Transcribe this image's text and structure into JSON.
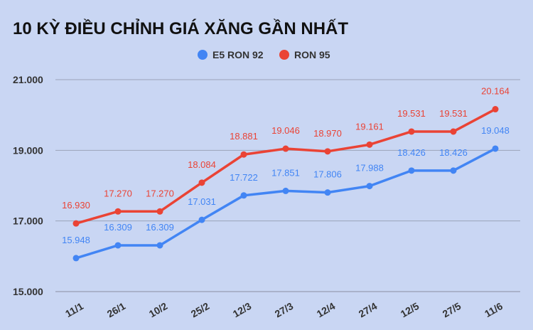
{
  "chart_data": {
    "type": "line",
    "title": "10 KỲ ĐIỀU CHỈNH GIÁ XĂNG GẦN NHẤT",
    "categories": [
      "11/1",
      "26/1",
      "10/2",
      "25/2",
      "12/3",
      "27/3",
      "12/4",
      "27/4",
      "12/5",
      "27/5",
      "11/6"
    ],
    "series": [
      {
        "name": "E5 RON 92",
        "color": "#4285f4",
        "values": [
          15948,
          16309,
          16309,
          17031,
          17722,
          17851,
          17806,
          17988,
          18426,
          18426,
          19048
        ],
        "labels": [
          "15.948",
          "16.309",
          "16.309",
          "17.031",
          "17.722",
          "17.851",
          "17.806",
          "17.988",
          "18.426",
          "18.426",
          "19.048"
        ]
      },
      {
        "name": "RON 95",
        "color": "#ea4335",
        "values": [
          16930,
          17270,
          17270,
          18084,
          18881,
          19046,
          18970,
          19161,
          19531,
          19531,
          20164
        ],
        "labels": [
          "16.930",
          "17.270",
          "17.270",
          "18.084",
          "18.881",
          "19.046",
          "18.970",
          "19.161",
          "19.531",
          "19.531",
          "20.164"
        ]
      }
    ],
    "yticks": [
      15000,
      17000,
      19000,
      21000
    ],
    "ytick_labels": [
      "15.000",
      "17.000",
      "19.000",
      "21.000"
    ],
    "ylim": [
      15000,
      21000
    ],
    "grid": true,
    "legend_position": "top-center",
    "xlabel": "",
    "ylabel": ""
  }
}
